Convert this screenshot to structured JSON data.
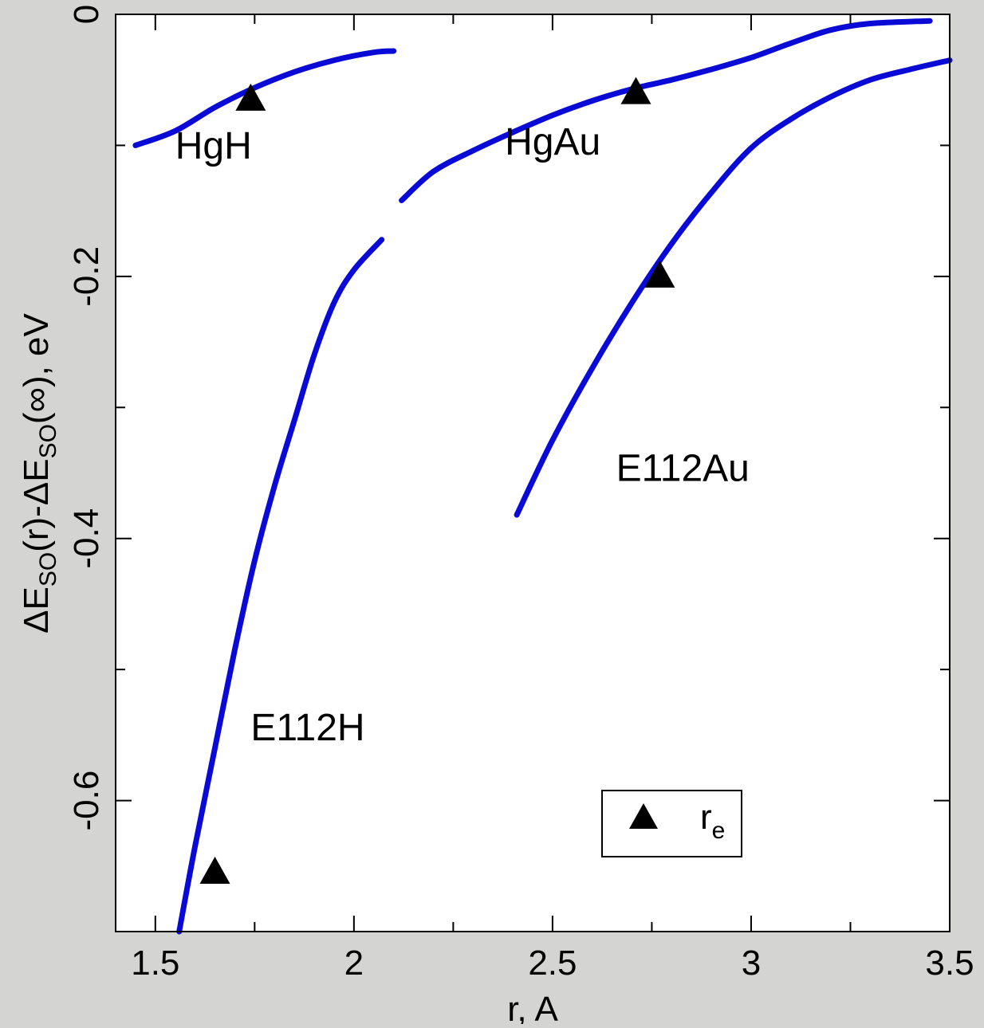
{
  "chart_data": {
    "type": "line",
    "title": "",
    "xlabel": "r, A",
    "ylabel_parts": [
      "ΔE",
      "SO",
      "(r)-ΔE",
      "SO",
      "(∞), eV"
    ],
    "xlim": [
      1.4,
      3.5
    ],
    "ylim": [
      -0.7,
      0
    ],
    "xticks": [
      1.5,
      2,
      2.5,
      3,
      3.5
    ],
    "xtick_labels": [
      "1.5",
      "2",
      "2.5",
      "3",
      "3.5"
    ],
    "yticks": [
      0,
      -0.2,
      -0.4,
      -0.6
    ],
    "ytick_labels": [
      "0",
      "-0.2",
      "-0.4",
      "-0.6"
    ],
    "grid": false,
    "line_color": "#0a0ad6",
    "series": [
      {
        "name": "HgH",
        "x": [
          1.45,
          1.55,
          1.65,
          1.75,
          1.85,
          1.95,
          2.05,
          2.1
        ],
        "y": [
          -0.1,
          -0.089,
          -0.071,
          -0.056,
          -0.044,
          -0.035,
          -0.029,
          -0.028
        ]
      },
      {
        "name": "HgAu",
        "x": [
          2.12,
          2.2,
          2.3,
          2.4,
          2.5,
          2.6,
          2.7,
          2.8,
          2.9,
          3.0,
          3.1,
          3.2,
          3.3,
          3.45
        ],
        "y": [
          -0.142,
          -0.12,
          -0.104,
          -0.09,
          -0.077,
          -0.066,
          -0.057,
          -0.05,
          -0.042,
          -0.033,
          -0.022,
          -0.012,
          -0.007,
          -0.005
        ]
      },
      {
        "name": "E112H",
        "x": [
          1.56,
          1.6,
          1.65,
          1.7,
          1.75,
          1.8,
          1.85,
          1.9,
          1.95,
          2.0,
          2.07
        ],
        "y": [
          -0.7,
          -0.635,
          -0.56,
          -0.485,
          -0.417,
          -0.36,
          -0.31,
          -0.26,
          -0.22,
          -0.195,
          -0.172
        ]
      },
      {
        "name": "E112Au",
        "x": [
          2.41,
          2.5,
          2.6,
          2.7,
          2.8,
          2.9,
          3.0,
          3.1,
          3.2,
          3.3,
          3.4,
          3.5
        ],
        "y": [
          -0.382,
          -0.325,
          -0.27,
          -0.22,
          -0.175,
          -0.136,
          -0.102,
          -0.08,
          -0.063,
          -0.05,
          -0.042,
          -0.035
        ]
      }
    ],
    "series_label_positions": [
      {
        "name": "HgH",
        "x": 1.55,
        "y": -0.11
      },
      {
        "name": "HgAu",
        "x": 2.38,
        "y": -0.107
      },
      {
        "name": "E112Au",
        "x": 2.66,
        "y": -0.356
      },
      {
        "name": "E112H",
        "x": 1.74,
        "y": -0.554
      }
    ],
    "markers": {
      "label": "r",
      "label_sub": "e",
      "symbol": "triangle",
      "points": [
        {
          "x": 1.74,
          "y": -0.065
        },
        {
          "x": 2.71,
          "y": -0.06
        },
        {
          "x": 2.77,
          "y": -0.2
        },
        {
          "x": 1.65,
          "y": -0.655
        }
      ]
    },
    "legend": {
      "placement": "bottom-right"
    }
  }
}
